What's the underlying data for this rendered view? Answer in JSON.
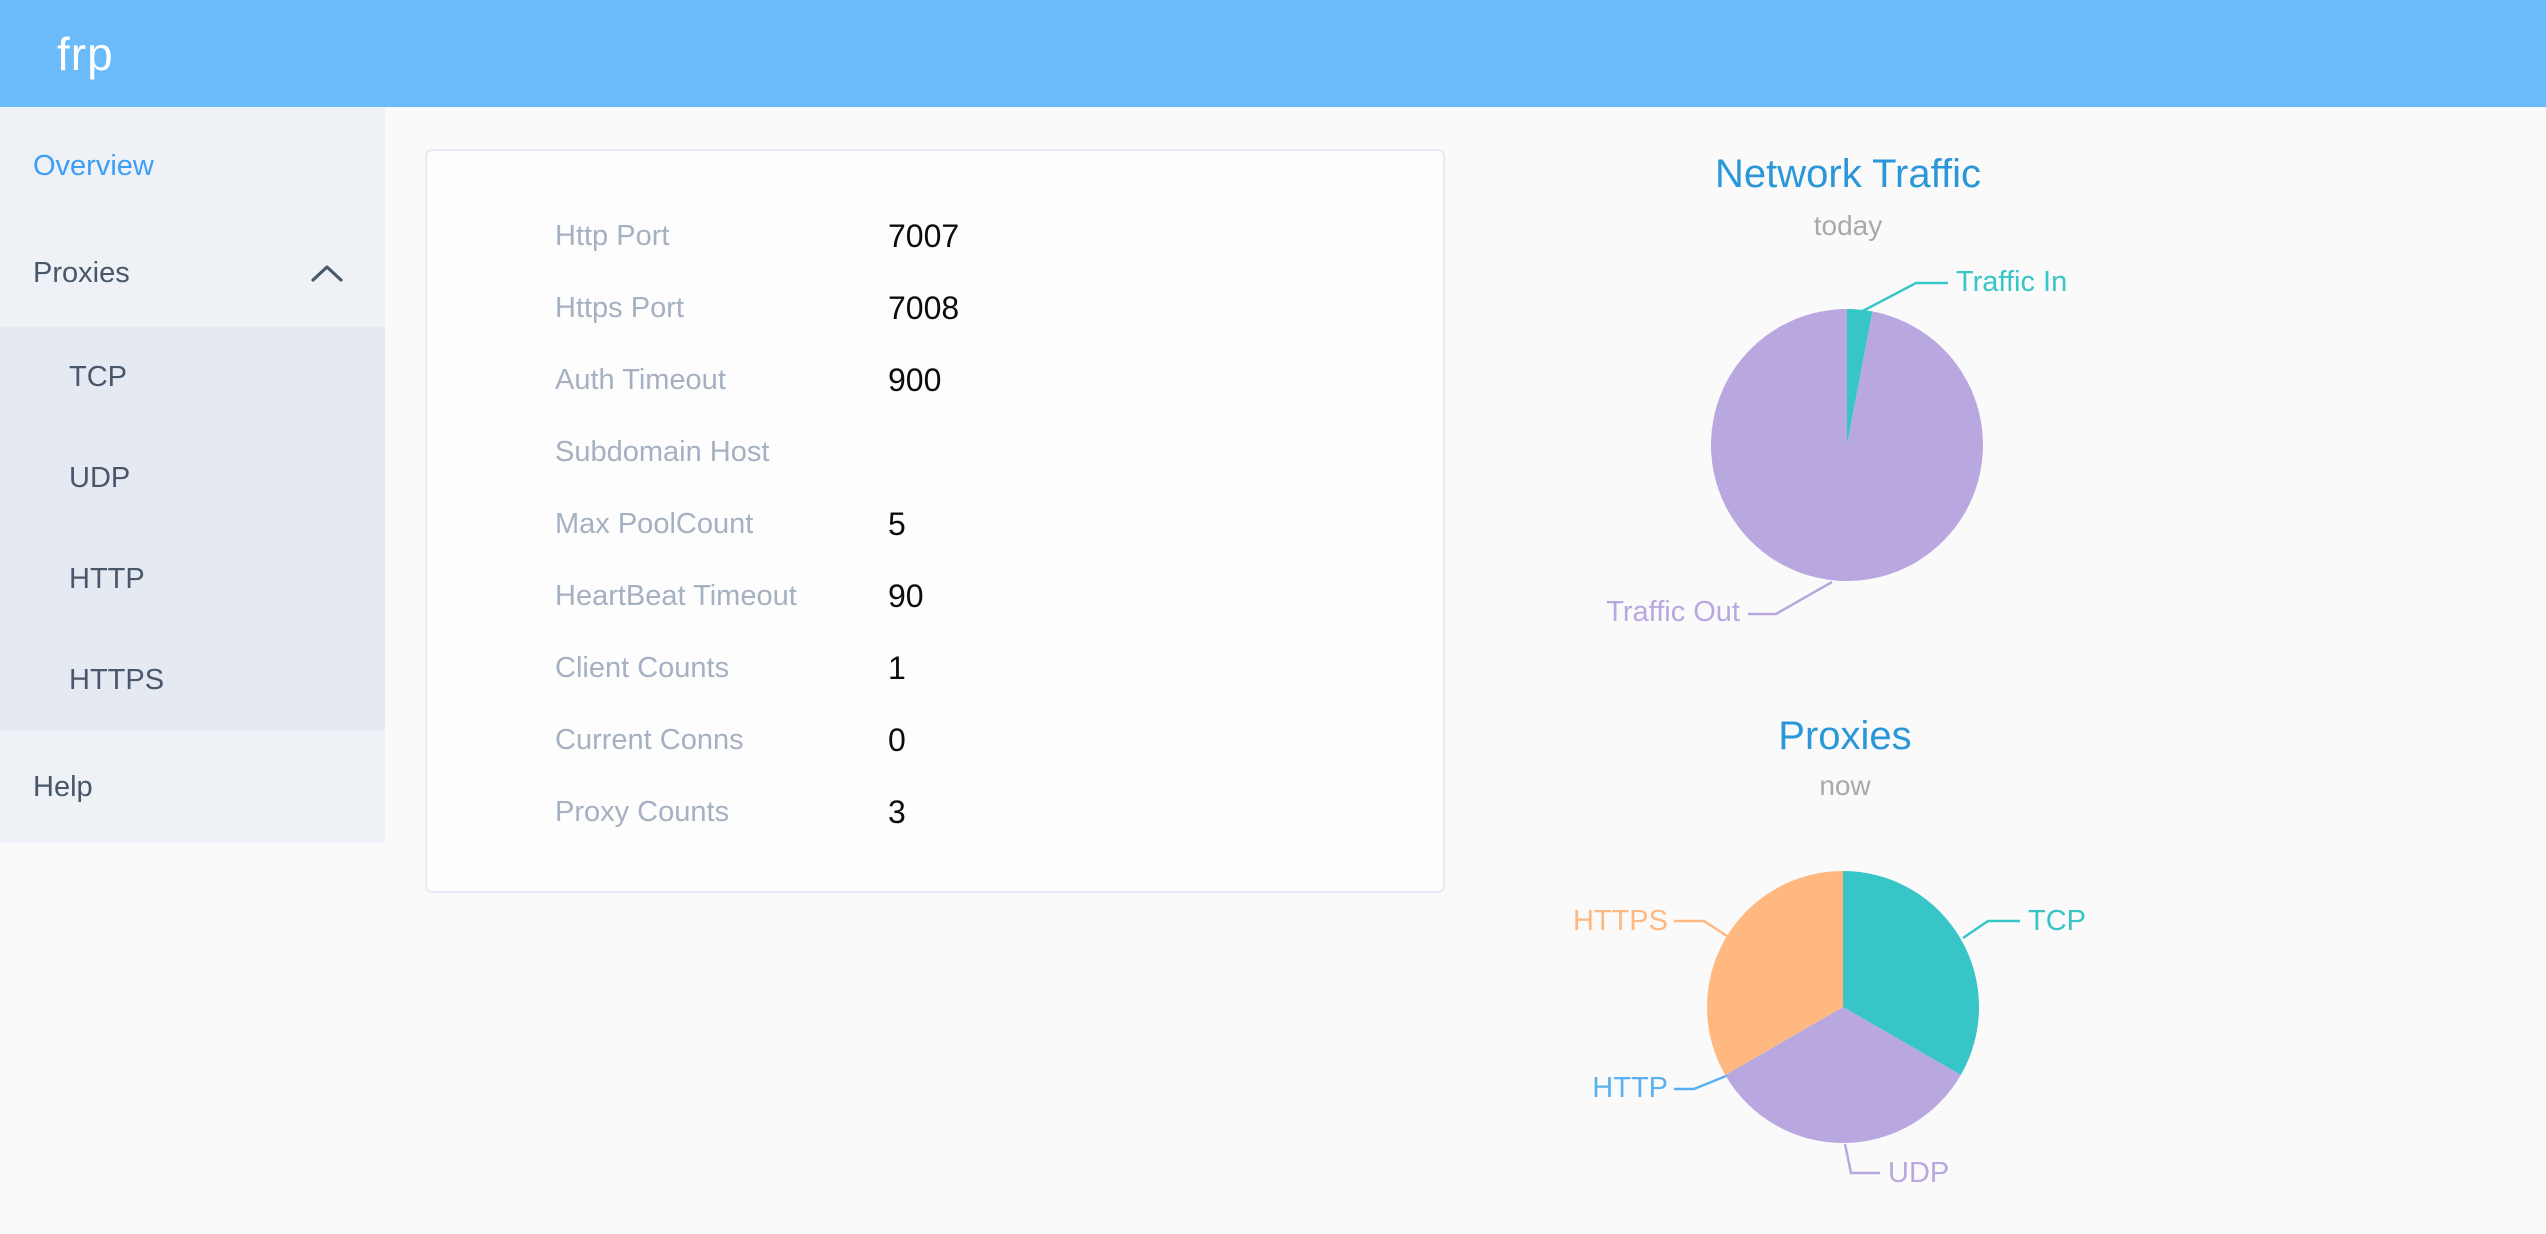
{
  "header": {
    "logo": "frp"
  },
  "sidebar": {
    "overview": "Overview",
    "proxies": "Proxies",
    "submenu": [
      "TCP",
      "UDP",
      "HTTP",
      "HTTPS"
    ],
    "help": "Help"
  },
  "panel": {
    "rows": [
      {
        "label": "Http Port",
        "value": "7007"
      },
      {
        "label": "Https Port",
        "value": "7008"
      },
      {
        "label": "Auth Timeout",
        "value": "900"
      },
      {
        "label": "Subdomain Host",
        "value": ""
      },
      {
        "label": "Max PoolCount",
        "value": "5"
      },
      {
        "label": "HeartBeat Timeout",
        "value": "90"
      },
      {
        "label": "Client Counts",
        "value": "1"
      },
      {
        "label": "Current Conns",
        "value": "0"
      },
      {
        "label": "Proxy Counts",
        "value": "3"
      }
    ]
  },
  "chart_data": [
    {
      "type": "pie",
      "title": "Network Traffic",
      "subtitle": "today",
      "legend_position": "callout-labels",
      "slices": [
        {
          "label": "Traffic In",
          "value": 3,
          "value_note": "approx % of today's traffic read from pie",
          "color": "#38c5c7"
        },
        {
          "label": "Traffic Out",
          "value": 97,
          "value_note": "approx % of today's traffic read from pie",
          "color": "#b9a7e0"
        }
      ]
    },
    {
      "type": "pie",
      "title": "Proxies",
      "subtitle": "now",
      "legend_position": "callout-labels",
      "slices": [
        {
          "label": "TCP",
          "value": 1,
          "color": "#38c5c7"
        },
        {
          "label": "UDP",
          "value": 1,
          "color": "#b9a7e0"
        },
        {
          "label": "HTTP",
          "value": 0,
          "color": "#5ab1ef"
        },
        {
          "label": "HTTPS",
          "value": 1,
          "color": "#ffb980"
        }
      ]
    }
  ]
}
